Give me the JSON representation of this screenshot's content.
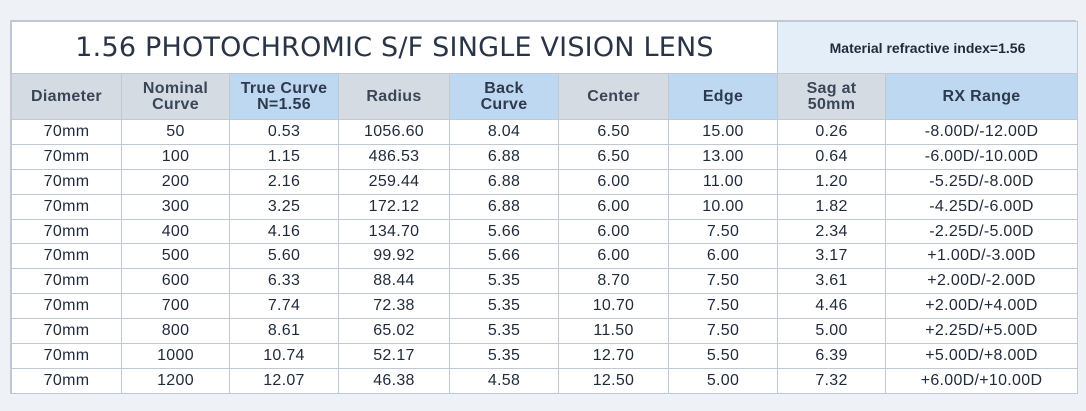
{
  "title": "1.56 PHOTOCHROMIC S/F SINGLE VISION LENS",
  "material_note": "Material refractive index=1.56",
  "headers": [
    {
      "line1": "Diameter",
      "line2": ""
    },
    {
      "line1": "Nominal",
      "line2": "Curve"
    },
    {
      "line1": "True Curve",
      "line2": "N=1.56"
    },
    {
      "line1": "Radius",
      "line2": ""
    },
    {
      "line1": "Back",
      "line2": "Curve"
    },
    {
      "line1": "Center",
      "line2": ""
    },
    {
      "line1": "Edge",
      "line2": ""
    },
    {
      "line1": "Sag at",
      "line2": "50mm"
    },
    {
      "line1": "RX Range",
      "line2": ""
    }
  ],
  "rows": [
    [
      "70mm",
      "50",
      "0.53",
      "1056.60",
      "8.04",
      "6.50",
      "15.00",
      "0.26",
      "-8.00D/-12.00D"
    ],
    [
      "70mm",
      "100",
      "1.15",
      "486.53",
      "6.88",
      "6.50",
      "13.00",
      "0.64",
      "-6.00D/-10.00D"
    ],
    [
      "70mm",
      "200",
      "2.16",
      "259.44",
      "6.88",
      "6.00",
      "11.00",
      "1.20",
      "-5.25D/-8.00D"
    ],
    [
      "70mm",
      "300",
      "3.25",
      "172.12",
      "6.88",
      "6.00",
      "10.00",
      "1.82",
      "-4.25D/-6.00D"
    ],
    [
      "70mm",
      "400",
      "4.16",
      "134.70",
      "5.66",
      "6.00",
      "7.50",
      "2.34",
      "-2.25D/-5.00D"
    ],
    [
      "70mm",
      "500",
      "5.60",
      "99.92",
      "5.66",
      "6.00",
      "6.00",
      "3.17",
      "+1.00D/-3.00D"
    ],
    [
      "70mm",
      "600",
      "6.33",
      "88.44",
      "5.35",
      "8.70",
      "7.50",
      "3.61",
      "+2.00D/-2.00D"
    ],
    [
      "70mm",
      "700",
      "7.74",
      "72.38",
      "5.35",
      "10.70",
      "7.50",
      "4.46",
      "+2.00D/+4.00D"
    ],
    [
      "70mm",
      "800",
      "8.61",
      "65.02",
      "5.35",
      "11.50",
      "7.50",
      "5.00",
      "+2.25D/+5.00D"
    ],
    [
      "70mm",
      "1000",
      "10.74",
      "52.17",
      "5.35",
      "12.70",
      "5.50",
      "6.39",
      "+5.00D/+8.00D"
    ],
    [
      "70mm",
      "1200",
      "12.07",
      "46.38",
      "4.58",
      "12.50",
      "5.00",
      "7.32",
      "+6.00D/+10.00D"
    ]
  ]
}
